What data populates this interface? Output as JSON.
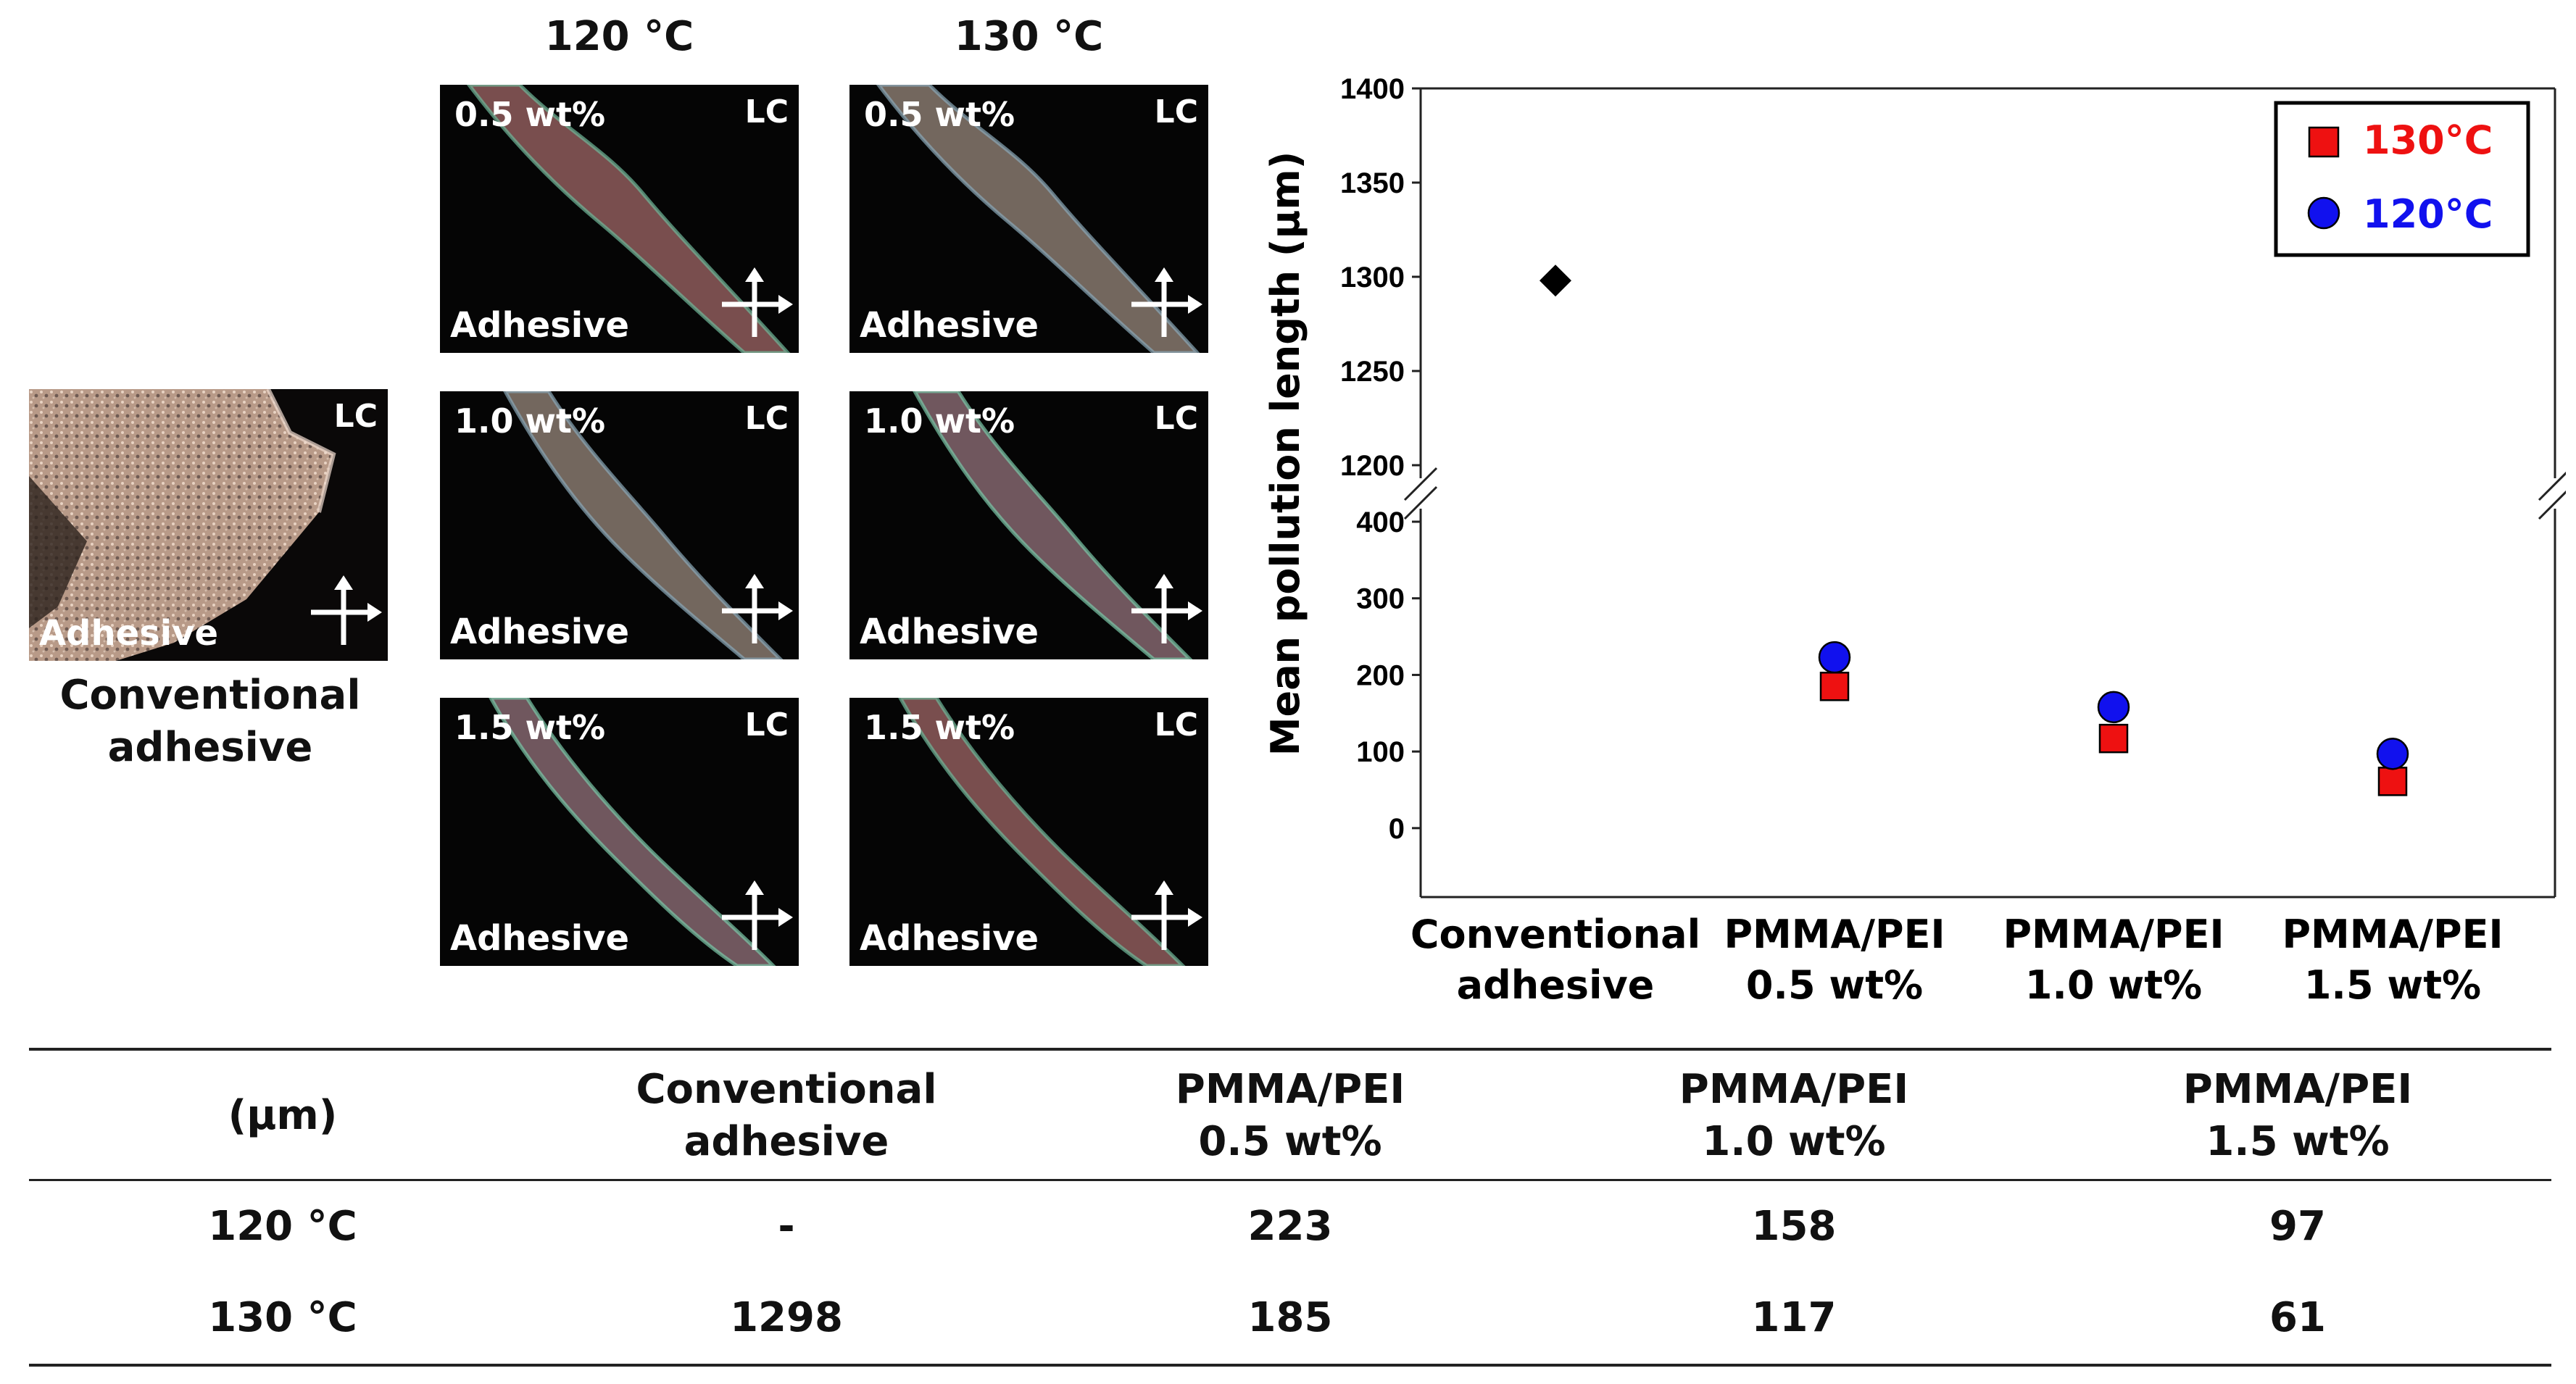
{
  "micrographs": {
    "column_headers": [
      "120 °C",
      "130 °C"
    ],
    "overlay_labels": {
      "lc": "LC",
      "adhesive": "Adhesive"
    },
    "concentrations": [
      "0.5 wt%",
      "1.0 wt%",
      "1.5 wt%"
    ],
    "conventional_label_line1": "Conventional",
    "conventional_label_line2": "adhesive"
  },
  "chart_data": {
    "type": "scatter",
    "ylabel": "Mean pollution length (μm)",
    "categories": [
      [
        "Conventional",
        "adhesive"
      ],
      [
        "PMMA/PEI",
        "0.5 wt%"
      ],
      [
        "PMMA/PEI",
        "1.0 wt%"
      ],
      [
        "PMMA/PEI",
        "1.5 wt%"
      ]
    ],
    "y_upper_ticks": [
      1200,
      1250,
      1300,
      1350,
      1400
    ],
    "y_lower_ticks": [
      0,
      100,
      200,
      300,
      400
    ],
    "y_upper_range": [
      1200,
      1400
    ],
    "y_lower_range": [
      -90,
      400
    ],
    "axis_break": true,
    "series": [
      {
        "name": "130°C",
        "marker": "square",
        "color": "#ee1111",
        "values": [
          null,
          185,
          117,
          61
        ]
      },
      {
        "name": "120°C",
        "marker": "circle",
        "color": "#1111ee",
        "values": [
          null,
          223,
          158,
          97
        ]
      },
      {
        "name": "Conventional adhesive",
        "marker": "diamond",
        "color": "#000000",
        "values": [
          1298,
          null,
          null,
          null
        ]
      }
    ],
    "legend": [
      "130°C",
      "120°C"
    ],
    "legend_position": "top-right"
  },
  "table": {
    "unit_header": "(μm)",
    "headers": [
      [
        "Conventional",
        "adhesive"
      ],
      [
        "PMMA/PEI",
        "0.5 wt%"
      ],
      [
        "PMMA/PEI",
        "1.0 wt%"
      ],
      [
        "PMMA/PEI",
        "1.5 wt%"
      ]
    ],
    "rows": [
      {
        "label": "120 °C",
        "cells": [
          "-",
          "223",
          "158",
          "97"
        ]
      },
      {
        "label": "130 °C",
        "cells": [
          "1298",
          "185",
          "117",
          "61"
        ]
      }
    ]
  }
}
